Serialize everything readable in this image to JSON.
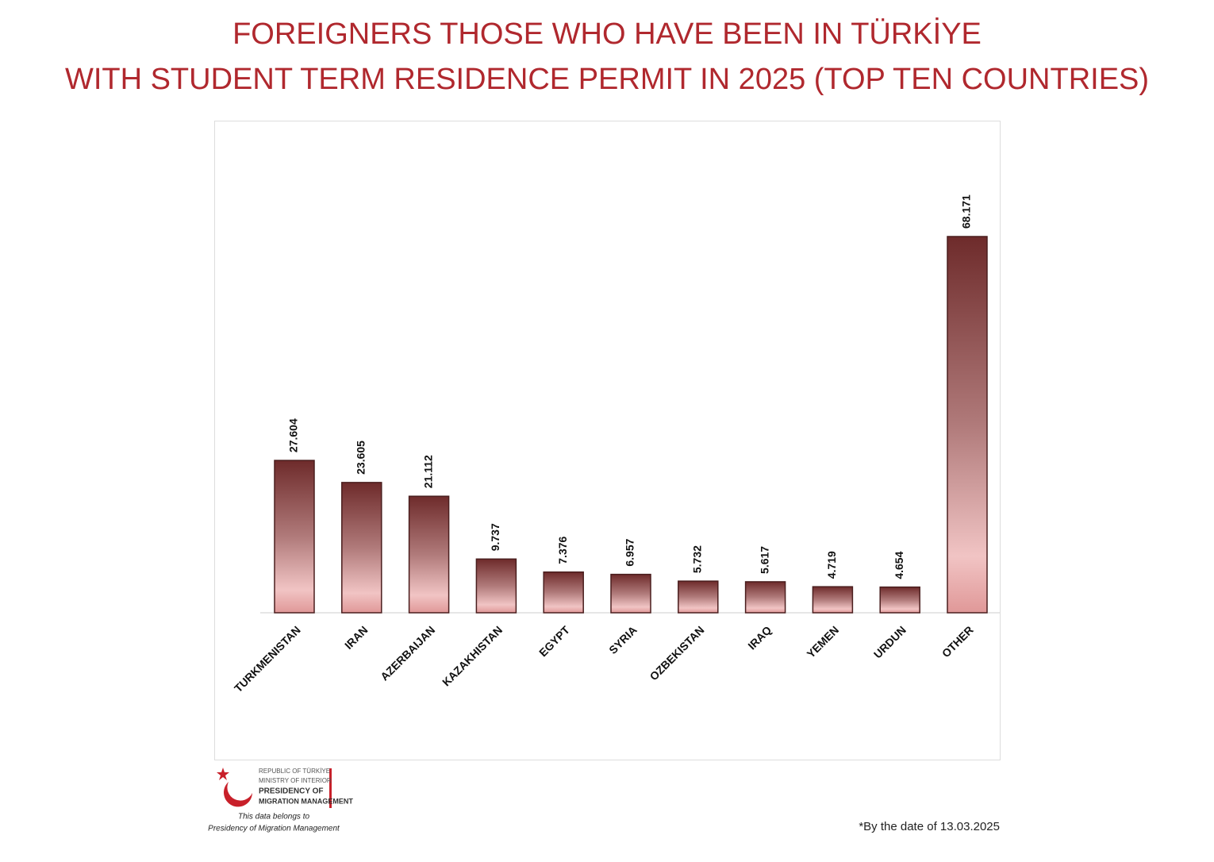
{
  "chart_data": {
    "type": "bar",
    "title": [
      "FOREIGNERS THOSE WHO HAVE BEEN IN TÜRKİYE",
      "WITH STUDENT TERM RESIDENCE PERMIT IN 2025 (TOP TEN COUNTRIES)"
    ],
    "categories": [
      "TURKMENISTAN",
      "IRAN",
      "AZERBAIJAN",
      "KAZAKHISTAN",
      "EGYPT",
      "SYRIA",
      "OZBEKISTAN",
      "IRAQ",
      "YEMEN",
      "URDUN",
      "OTHER"
    ],
    "values": [
      27604,
      23605,
      21112,
      9737,
      7376,
      6957,
      5732,
      5617,
      4719,
      4654,
      68171
    ],
    "value_labels": [
      "27.604",
      "23.605",
      "21.112",
      "9.737",
      "7.376",
      "6.957",
      "5.732",
      "5.617",
      "4.719",
      "4.654",
      "68.171"
    ],
    "color": "#6e2b2b",
    "footnote": "*By the date of  13.03.2025",
    "logo": [
      "REPUBLIC OF TÜRKİYE",
      "MINISTRY OF INTERIOR",
      "PRESIDENCY OF",
      "MIGRATION MANAGEMENT"
    ],
    "source": [
      "This data belongs to",
      "Presidency of Migration Management"
    ]
  }
}
